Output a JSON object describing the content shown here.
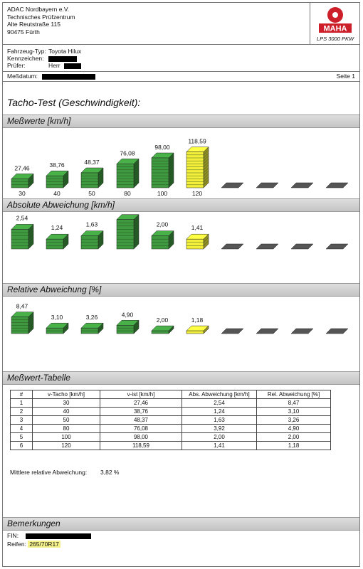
{
  "header": {
    "address_lines": [
      "ADAC Nordbayern e.V.",
      "Technisches Prüfzentrum",
      "Alte Reutstraße 115",
      "90475 Fürth"
    ],
    "logo_text": "MAHA",
    "device": "LPS 3000 PKW",
    "logo_color": "#cc1f2a"
  },
  "vehicle": {
    "type_label": "Fahrzeug-Typ:",
    "type_value": "Toyota Hilux",
    "plate_label": "Kennzeichen:",
    "tester_label": "Prüfer:",
    "tester_value": "Herr"
  },
  "date": {
    "label": "Meßdatum:",
    "page": "Seite 1"
  },
  "title": "Tacho-Test (Geschwindigkeit):",
  "sections": {
    "measured": "Meßwerte [km/h]",
    "absolute": "Absolute Abweichung [km/h]",
    "relative": "Relative Abweichung [%]",
    "table": "Meßwert-Tabelle",
    "remarks": "Bemerkungen"
  },
  "colors": {
    "green": "#3f9a3f",
    "yellow": "#f2ee3a",
    "empty": "#555555"
  },
  "chart_data": [
    {
      "type": "bar",
      "name": "measured",
      "categories": [
        "30",
        "40",
        "50",
        "80",
        "100",
        "120"
      ],
      "labels": [
        "27,46",
        "38,76",
        "48,37",
        "76,08",
        "98,00",
        "118,59"
      ],
      "values": [
        27.46,
        38.76,
        48.37,
        76.08,
        98.0,
        118.59
      ],
      "empty_slots": 4,
      "show_categories": true
    },
    {
      "type": "bar",
      "name": "absolute",
      "labels": [
        "2,54",
        "1,24",
        "1,63",
        "3,92",
        "2,00",
        "1,41"
      ],
      "values": [
        2.54,
        1.24,
        1.63,
        3.92,
        2.0,
        1.41
      ],
      "empty_slots": 4,
      "show_categories": false
    },
    {
      "type": "bar",
      "name": "relative",
      "labels": [
        "8,47",
        "3,10",
        "3,26",
        "4,90",
        "2,00",
        "1,18"
      ],
      "values": [
        8.47,
        3.1,
        3.26,
        4.9,
        2.0,
        1.18
      ],
      "empty_slots": 4,
      "show_categories": false
    }
  ],
  "table": {
    "headers": [
      "#",
      "v-Tacho [km/h]",
      "v-ist [km/h]",
      "Abs. Abweichung [km/h]",
      "Rel. Abweichung [%]"
    ],
    "rows": [
      [
        "1",
        "30",
        "27,46",
        "2,54",
        "8,47"
      ],
      [
        "2",
        "40",
        "38,76",
        "1,24",
        "3,10"
      ],
      [
        "3",
        "50",
        "48,37",
        "1,63",
        "3,26"
      ],
      [
        "4",
        "80",
        "76,08",
        "3,92",
        "4,90"
      ],
      [
        "5",
        "100",
        "98,00",
        "2,00",
        "2,00"
      ],
      [
        "6",
        "120",
        "118,59",
        "1,41",
        "1,18"
      ]
    ]
  },
  "average": {
    "label": "Mittlere relative Abweichung:",
    "value": "3,82 %"
  },
  "remarks": {
    "fin_label": "FIN:",
    "tires_label": "Reifen:",
    "tires_value": "265/70R17"
  }
}
